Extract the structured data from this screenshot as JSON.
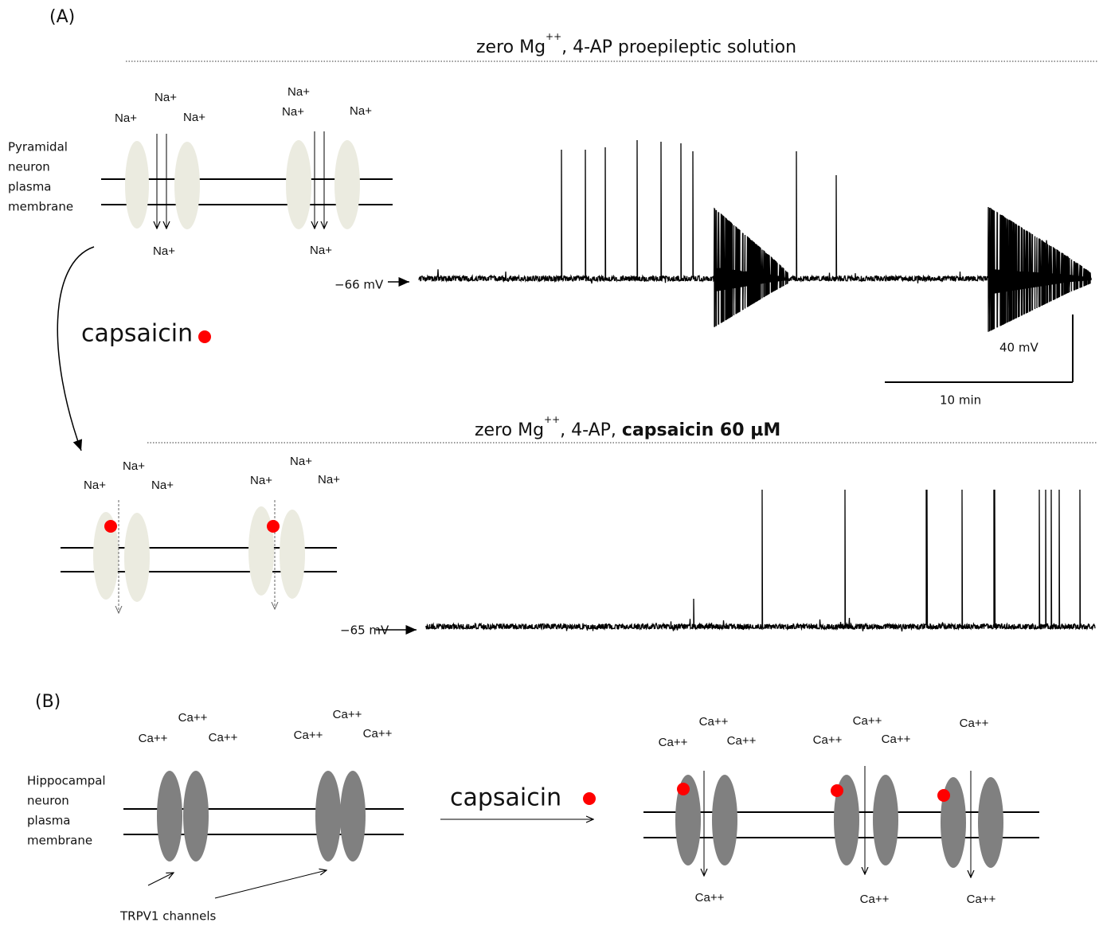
{
  "panel_a": {
    "label": "(A)",
    "condition_1": {
      "prefix": "zero Mg",
      "superscript": "++",
      "suffix": ", 4-AP  proepileptic solution"
    },
    "membrane_label": [
      "Pyramidal",
      "neuron",
      "plasma",
      "membrane"
    ],
    "ions_1": [
      "Na+",
      "Na+",
      "Na+",
      "Na+",
      "Na+",
      "Na+",
      "Na+",
      "Na+"
    ],
    "resting_1": "−66 mV",
    "drug": "capsaicin",
    "scale_bar": {
      "vertical": "40 mV",
      "horizontal": "10 min"
    },
    "condition_2": {
      "prefix": "zero Mg",
      "superscript": "++",
      "middle": ", 4-AP, ",
      "bold": "capsaicin 60 µM"
    },
    "ions_2": [
      "Na+",
      "Na+",
      "Na+",
      "Na+",
      "Na+",
      "Na+"
    ],
    "resting_2": "−65 mV"
  },
  "panel_b": {
    "label": "(B)",
    "ions_left": [
      "Ca++",
      "Ca++",
      "Ca++",
      "Ca++",
      "Ca++",
      "Ca++"
    ],
    "membrane_label": [
      "Hippocampal",
      "neuron",
      "plasma",
      "membrane"
    ],
    "channel_label": "TRPV1 channels",
    "drug": "capsaicin",
    "ions_right": [
      "Ca++",
      "Ca++",
      "Ca++",
      "Ca++",
      "Ca++",
      "Ca++",
      "Ca++",
      "Ca++",
      "Ca++",
      "Ca++"
    ]
  }
}
